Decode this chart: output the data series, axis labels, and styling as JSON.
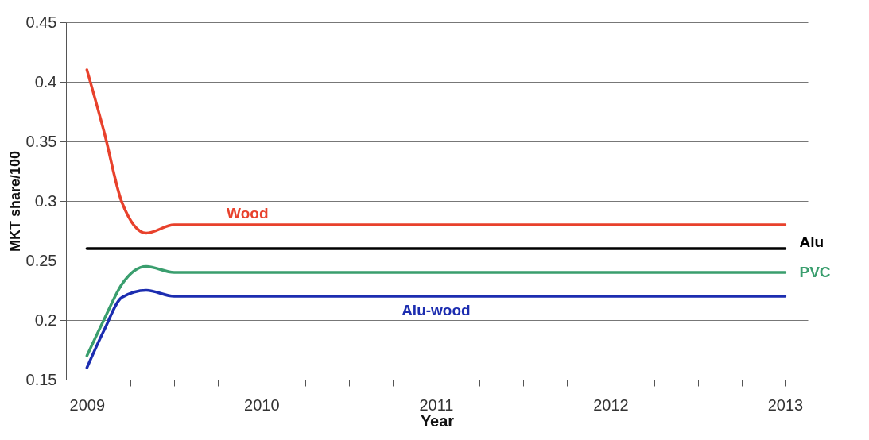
{
  "chart_data": {
    "type": "line",
    "xlabel": "Year",
    "ylabel": "MKT share/100",
    "xlim": [
      2008.88,
      2013.13
    ],
    "xticks": [
      {
        "value": 2009,
        "label": "2009"
      },
      {
        "value": 2009.25,
        "label": null
      },
      {
        "value": 2009.5,
        "label": null
      },
      {
        "value": 2009.75,
        "label": null
      },
      {
        "value": 2010,
        "label": "2010"
      },
      {
        "value": 2010.25,
        "label": null
      },
      {
        "value": 2010.5,
        "label": null
      },
      {
        "value": 2010.75,
        "label": null
      },
      {
        "value": 2011,
        "label": "2011"
      },
      {
        "value": 2011.25,
        "label": null
      },
      {
        "value": 2011.5,
        "label": null
      },
      {
        "value": 2011.75,
        "label": null
      },
      {
        "value": 2012,
        "label": "2012"
      },
      {
        "value": 2012.25,
        "label": null
      },
      {
        "value": 2012.5,
        "label": null
      },
      {
        "value": 2012.75,
        "label": null
      },
      {
        "value": 2013,
        "label": "2013"
      }
    ],
    "ylim": [
      0.15,
      0.45
    ],
    "yticks": [
      0.15,
      0.2,
      0.25,
      0.3,
      0.35,
      0.4,
      0.45
    ],
    "grid": "y",
    "legend": false,
    "marker": "none",
    "line_style": "solid",
    "series": [
      {
        "name": "Wood",
        "color": "#e8412c",
        "x": [
          2009,
          2009.1,
          2009.2,
          2009.34,
          2009.5,
          2013
        ],
        "values": [
          0.41,
          0.357,
          0.299,
          0.273,
          0.28,
          0.28
        ]
      },
      {
        "name": "Alu",
        "color": "#000000",
        "x": [
          2009,
          2013
        ],
        "values": [
          0.26,
          0.26
        ]
      },
      {
        "name": "PVC",
        "color": "#3a9e6e",
        "x": [
          2009,
          2009.1,
          2009.2,
          2009.34,
          2009.5,
          2013
        ],
        "values": [
          0.17,
          0.201,
          0.23,
          0.245,
          0.24,
          0.24
        ]
      },
      {
        "name": "Alu-wood",
        "color": "#1c2db0",
        "x": [
          2009,
          2009.1,
          2009.2,
          2009.34,
          2009.5,
          2013
        ],
        "values": [
          0.16,
          0.192,
          0.219,
          0.225,
          0.22,
          0.22
        ]
      }
    ]
  }
}
